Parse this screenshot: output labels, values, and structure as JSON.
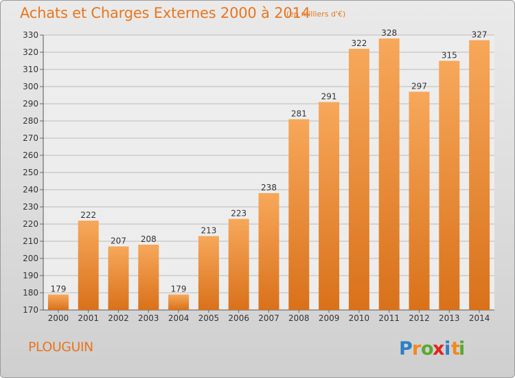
{
  "title": "Achats et Charges Externes 2000 à 2014",
  "subtitle": "(en milliers d'€)",
  "location": "PLOUGUIN",
  "logo": {
    "text": "Proxiti",
    "letters": [
      {
        "ch": "P",
        "color": "#2c7fc7"
      },
      {
        "ch": "r",
        "color": "#f08a1c"
      },
      {
        "ch": "o",
        "color": "#5aa832"
      },
      {
        "ch": "x",
        "color": "#e2231a"
      },
      {
        "ch": "i",
        "color": "#2c7fc7"
      },
      {
        "ch": "t",
        "color": "#f08a1c"
      },
      {
        "ch": "i",
        "color": "#5aa832"
      }
    ]
  },
  "colors": {
    "accent": "#e8761f",
    "bar_light": "#f7a85a",
    "bar_dark": "#d9711a",
    "grid": "#bcbcbc",
    "plot_bg": "#ededed"
  },
  "chart_data": {
    "type": "bar",
    "title": "Achats et Charges Externes 2000 à 2014",
    "subtitle": "(en milliers d'€)",
    "categories": [
      "2000",
      "2001",
      "2002",
      "2003",
      "2004",
      "2005",
      "2006",
      "2007",
      "2008",
      "2009",
      "2010",
      "2011",
      "2012",
      "2013",
      "2014"
    ],
    "values": [
      179,
      222,
      207,
      208,
      179,
      213,
      223,
      238,
      281,
      291,
      322,
      328,
      297,
      315,
      327
    ],
    "ylim": [
      170,
      330
    ],
    "yticks": [
      170,
      180,
      190,
      200,
      210,
      220,
      230,
      240,
      250,
      260,
      270,
      280,
      290,
      300,
      310,
      320,
      330
    ],
    "grid": true,
    "xlabel": "",
    "ylabel": ""
  }
}
